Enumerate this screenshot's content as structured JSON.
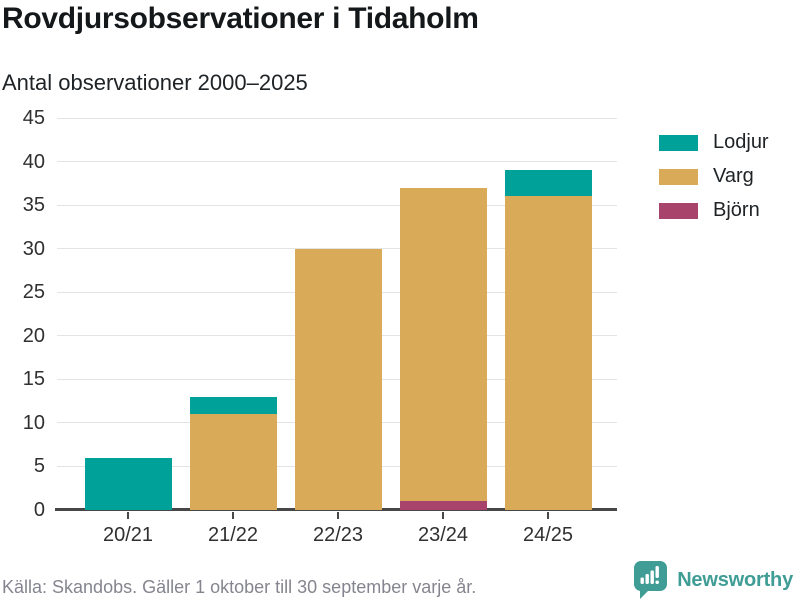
{
  "header": {
    "title": "Rovdjursobservationer i Tidaholm",
    "subtitle": "Antal observationer 2000–2025"
  },
  "footer": {
    "source": "Källa: Skandobs. Gäller 1 oktober till 30 september varje år.",
    "brand": "Newsworthy"
  },
  "colors": {
    "lodjur": "#00a199",
    "varg": "#d9ab58",
    "bjorn": "#a8436b",
    "axis": "#474747",
    "gridline": "#e4e4e4",
    "brand_teal": "#3f9d96"
  },
  "legend": [
    {
      "key": "lodjur",
      "label": "Lodjur",
      "color": "#00a199"
    },
    {
      "key": "varg",
      "label": "Varg",
      "color": "#d9ab58"
    },
    {
      "key": "bjorn",
      "label": "Björn",
      "color": "#a8436b"
    }
  ],
  "chart_data": {
    "type": "bar",
    "stacked": true,
    "title": "Rovdjursobservationer i Tidaholm",
    "subtitle": "Antal observationer 2000–2025",
    "categories": [
      "20/21",
      "21/22",
      "22/23",
      "23/24",
      "24/25"
    ],
    "series": [
      {
        "key": "bjorn",
        "name": "Björn",
        "color": "#a8436b",
        "values": [
          0,
          0,
          0,
          1,
          0
        ]
      },
      {
        "key": "varg",
        "name": "Varg",
        "color": "#d9ab58",
        "values": [
          0,
          11,
          30,
          36,
          36
        ]
      },
      {
        "key": "lodjur",
        "name": "Lodjur",
        "color": "#00a199",
        "values": [
          6,
          2,
          0,
          0,
          3
        ]
      }
    ],
    "totals": [
      6,
      13,
      30,
      37,
      39
    ],
    "xlabel": "",
    "ylabel": "",
    "ylim": [
      0,
      45
    ],
    "y_ticks": [
      0,
      5,
      10,
      15,
      20,
      25,
      30,
      35,
      40,
      45
    ],
    "grid": true,
    "legend_position": "right",
    "source": "Källa: Skandobs. Gäller 1 oktober till 30 september varje år."
  }
}
